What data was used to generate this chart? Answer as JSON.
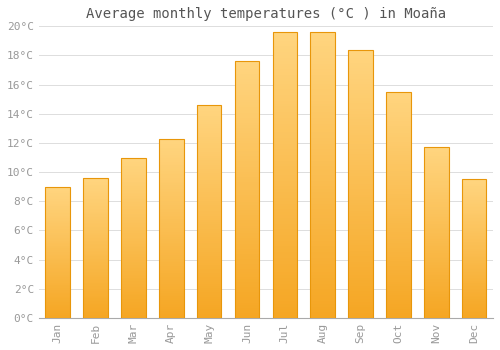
{
  "title": "Average monthly temperatures (°C ) in Moaña",
  "months": [
    "Jan",
    "Feb",
    "Mar",
    "Apr",
    "May",
    "Jun",
    "Jul",
    "Aug",
    "Sep",
    "Oct",
    "Nov",
    "Dec"
  ],
  "temperatures": [
    9.0,
    9.6,
    11.0,
    12.3,
    14.6,
    17.6,
    19.6,
    19.6,
    18.4,
    15.5,
    11.7,
    9.5
  ],
  "bar_color_bottom": "#F5A623",
  "bar_color_top": "#FFD580",
  "bar_edge_color": "#E8960A",
  "background_color": "#FFFFFF",
  "grid_color": "#DDDDDD",
  "ylim": [
    0,
    20
  ],
  "ytick_step": 2,
  "title_fontsize": 10,
  "tick_fontsize": 8,
  "tick_color": "#999999",
  "title_color": "#555555"
}
